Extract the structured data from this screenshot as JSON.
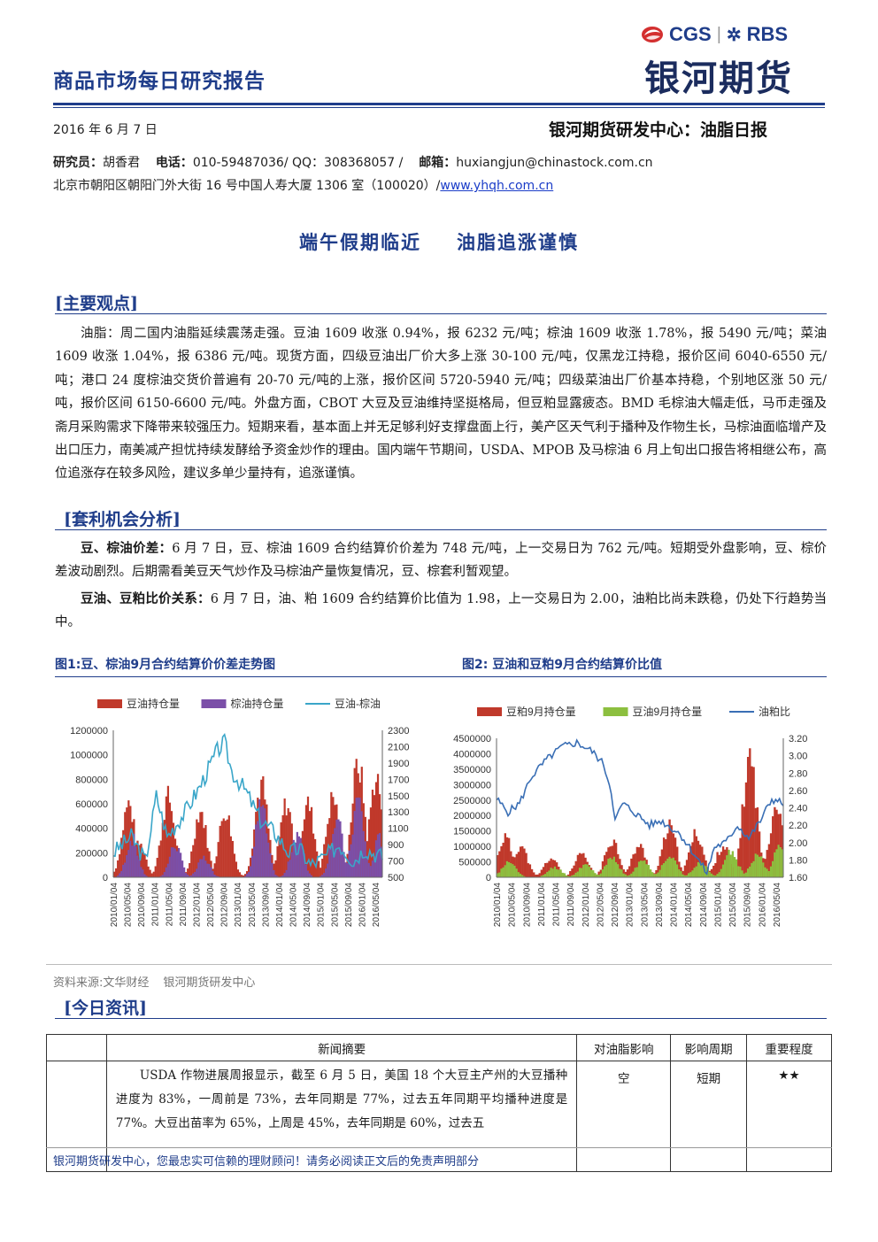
{
  "header": {
    "report_title": "商品市场每日研究报告",
    "logo_brand": "CGS",
    "logo_partner": "RBS",
    "logo_name": "银河期货",
    "date": "2016 年 6 月 7 日",
    "center_title": "银河期货研发中心：油脂日报",
    "researcher_label": "研究员：",
    "researcher_name": "胡香君",
    "phone_label": "电话：",
    "phone_value": "010-59487036/ QQ：308368057 /",
    "email_label": "邮箱：",
    "email_value": "huxiangjun@chinastock.com.cn",
    "address": "北京市朝阳区朝阳门外大街 16 号中国人寿大厦 1306 室（100020）/",
    "website": "www.yhqh.com.cn"
  },
  "headline": {
    "part1": "端午假期临近",
    "part2": "油脂追涨谨慎"
  },
  "main_view": {
    "heading": "[主要观点]",
    "text": "油脂：周二国内油脂延续震荡走强。豆油 1609 收涨 0.94%，报 6232 元/吨；棕油 1609 收涨 1.78%，报 5490 元/吨；菜油 1609 收涨 1.04%，报 6386 元/吨。现货方面，四级豆油出厂价大多上涨 30-100 元/吨，仅黑龙江持稳，报价区间 6040-6550 元/吨；港口 24 度棕油交货价普遍有 20-70 元/吨的上涨，报价区间 5720-5940 元/吨；四级菜油出厂价基本持稳，个别地区涨 50 元/吨，报价区间 6150-6600 元/吨。外盘方面，CBOT 大豆及豆油维持坚挺格局，但豆粕显露疲态。BMD 毛棕油大幅走低，马币走强及斋月采购需求下降带来较强压力。短期来看，基本面上并无足够利好支撑盘面上行，美产区天气利于播种及作物生长，马棕油面临增产及出口压力，南美减产担忧持续发酵给予资金炒作的理由。国内端午节期间，USDA、MPOB 及马棕油 6 月上旬出口报告将相继公布，高位追涨存在较多风险，建议多单少量持有，追涨谨慎。"
  },
  "arbitrage": {
    "heading": "[套利机会分析]",
    "p1_label": "豆、棕油价差：",
    "p1_text": "6 月 7 日，豆、棕油 1609 合约结算价价差为 748 元/吨，上一交易日为 762 元/吨。短期受外盘影响，豆、棕价差波动剧烈。后期需看美豆天气炒作及马棕油产量恢复情况，豆、棕套利暂观望。",
    "p2_label": "豆油、豆粕比价关系：",
    "p2_text": "6 月 7 日，油、粕 1609 合约结算价比值为 1.98，上一交易日为 2.00，油粕比尚未跌稳，仍处下行趋势当中。"
  },
  "figures": {
    "fig1_title": "图1:豆、棕油9月合约结算价价差走势图",
    "fig2_title": "图2: 豆油和豆粕9月合约结算价比值",
    "source_label": "资料来源:文华财经",
    "source_org": "银河期货研发中心"
  },
  "chart_data": [
    {
      "type": "bar",
      "series": [
        {
          "name": "豆油持仓量",
          "color": "#c0392b",
          "axis": "left"
        },
        {
          "name": "棕油持仓量",
          "color": "#7b4fa8",
          "axis": "left"
        },
        {
          "name": "豆油-棕油",
          "color": "#3aa6c9",
          "axis": "right",
          "kind": "line"
        }
      ],
      "y_left_ticks": [
        "1200000",
        "1000000",
        "800000",
        "600000",
        "400000",
        "200000",
        "0"
      ],
      "y_right_ticks": [
        "2300",
        "2100",
        "1900",
        "1700",
        "1500",
        "1300",
        "1100",
        "900",
        "700",
        "500"
      ],
      "x_ticks": [
        "2010/01/04",
        "2010/05/04",
        "2010/09/04",
        "2011/01/04",
        "2011/05/04",
        "2011/09/04",
        "2012/01/04",
        "2012/05/04",
        "2012/09/04",
        "2013/01/04",
        "2013/05/04",
        "2013/09/04",
        "2014/01/04",
        "2014/05/04",
        "2014/09/04",
        "2015/01/04",
        "2015/05/04",
        "2015/09/04",
        "2016/01/04",
        "2016/05/04"
      ],
      "ylim_left": [
        0,
        1200000
      ],
      "ylim_right": [
        500,
        2300
      ]
    },
    {
      "type": "bar",
      "series": [
        {
          "name": "豆粕9月持仓量",
          "color": "#c0392b",
          "axis": "left"
        },
        {
          "name": "豆油9月持仓量",
          "color": "#8cbf3f",
          "axis": "left"
        },
        {
          "name": "油粕比",
          "color": "#3a6fb5",
          "axis": "right",
          "kind": "line"
        }
      ],
      "y_left_ticks": [
        "4500000",
        "4000000",
        "3500000",
        "3000000",
        "2500000",
        "2000000",
        "1500000",
        "1000000",
        "500000",
        "0"
      ],
      "y_right_ticks": [
        "3.20",
        "3.00",
        "2.80",
        "2.60",
        "2.40",
        "2.20",
        "2.00",
        "1.80",
        "1.60"
      ],
      "x_ticks": [
        "2010/01/04",
        "2010/05/04",
        "2010/09/04",
        "2011/01/04",
        "2011/05/04",
        "2011/09/04",
        "2012/01/04",
        "2012/05/04",
        "2012/09/04",
        "2013/01/04",
        "2013/05/04",
        "2013/09/04",
        "2014/01/04",
        "2014/05/04",
        "2014/09/04",
        "2015/01/04",
        "2015/05/04",
        "2015/09/04",
        "2016/01/04",
        "2016/05/04"
      ],
      "ylim_left": [
        0,
        4500000
      ],
      "ylim_right": [
        1.6,
        3.2
      ]
    }
  ],
  "news": {
    "heading": "[今日资讯]",
    "col_summary": "新闻摘要",
    "col_impact": "对油脂影响",
    "col_period": "影响周期",
    "col_importance": "重要程度",
    "rows": [
      {
        "summary": "USDA 作物进展周报显示，截至 6 月 5 日，美国 18 个大豆主产州的大豆播种进度为 83%，一周前是 73%，去年同期是 77%，过去五年同期平均播种进度是 77%。大豆出苗率为 65%，上周是 45%，去年同期是 60%，过去五",
        "impact": "空",
        "period": "短期",
        "importance": "★★"
      }
    ]
  },
  "footer": {
    "text": "银河期货研发中心，您最忠实可信赖的理财顾问！请务必阅读正文后的免责声明部分"
  }
}
